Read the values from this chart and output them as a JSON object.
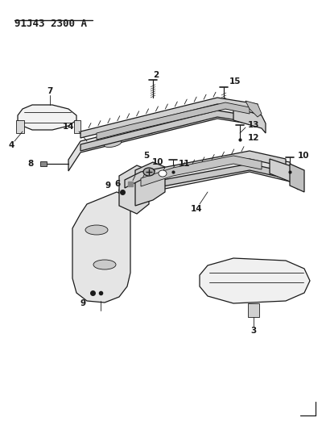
{
  "title": "91J43 2300 A",
  "background_color": "#ffffff",
  "line_color": "#1a1a1a",
  "title_fontsize": 9,
  "label_fontsize": 7.5,
  "fig_width": 4.06,
  "fig_height": 5.33,
  "dpi": 100
}
